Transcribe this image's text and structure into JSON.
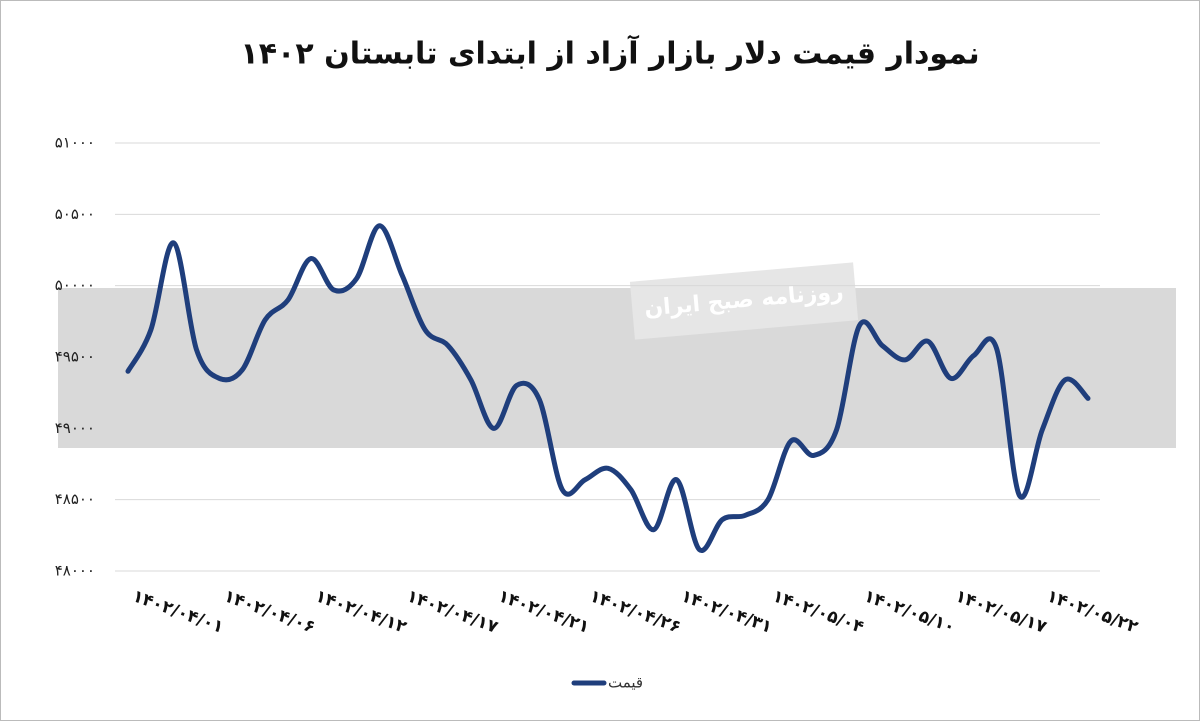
{
  "chart_data": {
    "type": "line",
    "title": "نمودار قیمت دلار بازار آزاد از ابتدای تابستان ۱۴۰۲",
    "watermark": "روزنامه صبح ایران",
    "categories": [
      "۱۴۰۲/۰۴/۰۱",
      null,
      null,
      null,
      "۱۴۰۲/۰۴/۰۶",
      null,
      null,
      null,
      "۱۴۰۲/۰۴/۱۲",
      null,
      null,
      null,
      "۱۴۰۲/۰۴/۱۷",
      null,
      null,
      null,
      "۱۴۰۲/۰۴/۲۱",
      null,
      null,
      null,
      "۱۴۰۲/۰۴/۲۶",
      null,
      null,
      null,
      "۱۴۰۲/۰۴/۳۱",
      null,
      null,
      null,
      "۱۴۰۲/۰۵/۰۴",
      null,
      null,
      null,
      "۱۴۰۲/۰۵/۱۰",
      null,
      null,
      null,
      "۱۴۰۲/۰۵/۱۷",
      null,
      null,
      null,
      "۱۴۰۲/۰۵/۲۲",
      null,
      null
    ],
    "series": [
      {
        "name": "قیمت",
        "color": "#1f3e7c",
        "values": [
          49400,
          49690,
          50300,
          49550,
          49350,
          49410,
          49760,
          49900,
          50190,
          49970,
          50050,
          50420,
          50070,
          49690,
          49580,
          49340,
          49000,
          49300,
          49200,
          48570,
          48640,
          48720,
          48570,
          48290,
          48640,
          48150,
          48360,
          48390,
          48500,
          48910,
          48810,
          48990,
          49720,
          49580,
          49480,
          49610,
          49350,
          49510,
          49560,
          48530,
          48990,
          49340,
          49210
        ]
      }
    ],
    "ylim": [
      48000,
      51000
    ],
    "yticks": [
      {
        "value": 48000,
        "label": "۴۸۰۰۰"
      },
      {
        "value": 48500,
        "label": "۴۸۵۰۰"
      },
      {
        "value": 49000,
        "label": "۴۹۰۰۰"
      },
      {
        "value": 49500,
        "label": "۴۹۵۰۰"
      },
      {
        "value": 50000,
        "label": "۵۰۰۰۰"
      },
      {
        "value": 50500,
        "label": "۵۰۵۰۰"
      },
      {
        "value": 51000,
        "label": "۵۱۰۰۰"
      }
    ],
    "grid": true,
    "legend": "bottom"
  }
}
